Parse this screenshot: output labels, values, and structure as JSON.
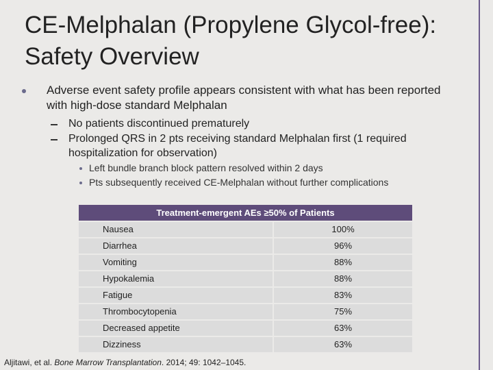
{
  "title": "CE-Melphalan (Propylene Glycol-free): Safety Overview",
  "bullets": [
    {
      "text": "Adverse event safety profile appears consistent with what has been reported with high-dose standard Melphalan",
      "subbullets": [
        {
          "text": "No patients discontinued prematurely",
          "subbullets": []
        },
        {
          "text": "Prolonged QRS in 2 pts receiving standard Melphalan first (1 required hospitalization for observation)",
          "subbullets": [
            {
              "text": "Left bundle branch block pattern resolved within 2 days"
            },
            {
              "text": "Pts subsequently received CE-Melphalan without further complications"
            }
          ]
        }
      ]
    }
  ],
  "table": {
    "header": "Treatment-emergent AEs ≥50% of Patients",
    "rows": [
      [
        "Nausea",
        "100%"
      ],
      [
        "Diarrhea",
        "96%"
      ],
      [
        "Vomiting",
        "88%"
      ],
      [
        "Hypokalemia",
        "88%"
      ],
      [
        "Fatigue",
        "83%"
      ],
      [
        "Thrombocytopenia",
        "75%"
      ],
      [
        "Decreased appetite",
        "63%"
      ],
      [
        "Dizziness",
        "63%"
      ]
    ]
  },
  "citation": {
    "authors": "Aljitawi, et al.",
    "journal": "Bone Marrow Transplantation",
    "details": "2014; 49: 1042–1045."
  }
}
